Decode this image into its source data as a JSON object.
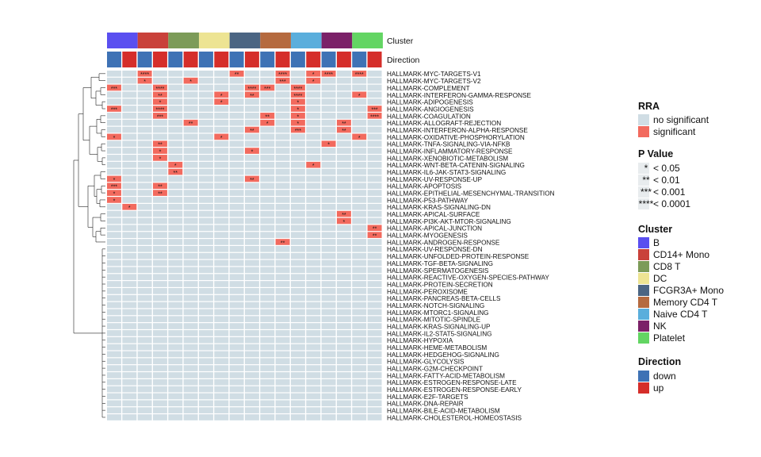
{
  "chart_data": {
    "type": "heatmap",
    "column_clusters": [
      "B",
      "B",
      "CD14+ Mono",
      "CD14+ Mono",
      "CD8 T",
      "CD8 T",
      "DC",
      "DC",
      "FCGR3A+ Mono",
      "FCGR3A+ Mono",
      "Memory CD4 T",
      "Memory CD4 T",
      "Naive CD4 T",
      "Naive CD4 T",
      "NK",
      "NK",
      "Platelet",
      "Platelet"
    ],
    "column_directions": [
      "down",
      "up",
      "down",
      "up",
      "down",
      "up",
      "down",
      "up",
      "down",
      "up",
      "down",
      "up",
      "down",
      "up",
      "down",
      "up",
      "down",
      "up"
    ],
    "column_annotation_labels": [
      "Cluster",
      "Direction"
    ],
    "rows": [
      {
        "label": "HALLMARK-MYC-TARGETS-V1",
        "cells": {
          "2": "****",
          "8": "**",
          "11": "****",
          "13": "*",
          "14": "****",
          "16": "****"
        }
      },
      {
        "label": "HALLMARK-MYC-TARGETS-V2",
        "cells": {
          "2": "*",
          "5": "*",
          "11": "***",
          "13": "*"
        }
      },
      {
        "label": "HALLMARK-COMPLEMENT",
        "cells": {
          "0": "***",
          "3": "****",
          "9": "****",
          "10": "***",
          "12": "****"
        }
      },
      {
        "label": "HALLMARK-INTERFERON-GAMMA-RESPONSE",
        "cells": {
          "3": "**",
          "7": "*",
          "9": "**",
          "12": "****",
          "16": "*"
        }
      },
      {
        "label": "HALLMARK-ADIPOGENESIS",
        "cells": {
          "3": "*",
          "7": "*",
          "12": "*"
        }
      },
      {
        "label": "HALLMARK-ANGIOGENESIS",
        "cells": {
          "0": "***",
          "3": "****",
          "12": "*",
          "17": "***"
        }
      },
      {
        "label": "HALLMARK-COAGULATION",
        "cells": {
          "3": "***",
          "10": "**",
          "12": "*",
          "17": "****"
        }
      },
      {
        "label": "HALLMARK-ALLOGRAFT-REJECTION",
        "cells": {
          "5": "**",
          "10": "*",
          "12": "*",
          "15": "**"
        }
      },
      {
        "label": "HALLMARK-INTERFERON-ALPHA-RESPONSE",
        "cells": {
          "9": "**",
          "12": "***",
          "15": "**"
        }
      },
      {
        "label": "HALLMARK-OXIDATIVE-PHOSPHORYLATION",
        "cells": {
          "0": "*",
          "7": "*",
          "16": "*"
        }
      },
      {
        "label": "HALLMARK-TNFA-SIGNALING-VIA-NFKB",
        "cells": {
          "3": "**",
          "14": "*"
        }
      },
      {
        "label": "HALLMARK-INFLAMMATORY-RESPONSE",
        "cells": {
          "3": "*",
          "9": "*"
        }
      },
      {
        "label": "HALLMARK-XENOBIOTIC-METABOLISM",
        "cells": {
          "3": "*"
        }
      },
      {
        "label": "HALLMARK-WNT-BETA-CATENIN-SIGNALING",
        "cells": {
          "4": "*",
          "13": "*"
        }
      },
      {
        "label": "HALLMARK-IL6-JAK-STAT3-SIGNALING",
        "cells": {
          "4": "**"
        }
      },
      {
        "label": "HALLMARK-UV-RESPONSE-UP",
        "cells": {
          "0": "*",
          "9": "**"
        }
      },
      {
        "label": "HALLMARK-APOPTOSIS",
        "cells": {
          "0": "***",
          "3": "**"
        }
      },
      {
        "label": "HALLMARK-EPITHELIAL-MESENCHYMAL-TRANSITION",
        "cells": {
          "0": "*",
          "3": "**"
        }
      },
      {
        "label": "HALLMARK-P53-PATHWAY",
        "cells": {
          "0": "*"
        }
      },
      {
        "label": "HALLMARK-KRAS-SIGNALING-DN",
        "cells": {
          "1": "*"
        }
      },
      {
        "label": "HALLMARK-APICAL-SURFACE",
        "cells": {
          "15": "**"
        }
      },
      {
        "label": "HALLMARK-PI3K-AKT-MTOR-SIGNALING",
        "cells": {
          "15": "*"
        }
      },
      {
        "label": "HALLMARK-APICAL-JUNCTION",
        "cells": {
          "17": "**"
        }
      },
      {
        "label": "HALLMARK-MYOGENESIS",
        "cells": {
          "17": "**"
        }
      },
      {
        "label": "HALLMARK-ANDROGEN-RESPONSE",
        "cells": {
          "11": "**"
        }
      },
      {
        "label": "HALLMARK-UV-RESPONSE-DN",
        "cells": {}
      },
      {
        "label": "HALLMARK-UNFOLDED-PROTEIN-RESPONSE",
        "cells": {}
      },
      {
        "label": "HALLMARK-TGF-BETA-SIGNALING",
        "cells": {}
      },
      {
        "label": "HALLMARK-SPERMATOGENESIS",
        "cells": {}
      },
      {
        "label": "HALLMARK-REACTIVE-OXYGEN-SPECIES-PATHWAY",
        "cells": {}
      },
      {
        "label": "HALLMARK-PROTEIN-SECRETION",
        "cells": {}
      },
      {
        "label": "HALLMARK-PEROXISOME",
        "cells": {}
      },
      {
        "label": "HALLMARK-PANCREAS-BETA-CELLS",
        "cells": {}
      },
      {
        "label": "HALLMARK-NOTCH-SIGNALING",
        "cells": {}
      },
      {
        "label": "HALLMARK-MTORC1-SIGNALING",
        "cells": {}
      },
      {
        "label": "HALLMARK-MITOTIC-SPINDLE",
        "cells": {}
      },
      {
        "label": "HALLMARK-KRAS-SIGNALING-UP",
        "cells": {}
      },
      {
        "label": "HALLMARK-IL2-STAT5-SIGNALING",
        "cells": {}
      },
      {
        "label": "HALLMARK-HYPOXIA",
        "cells": {}
      },
      {
        "label": "HALLMARK-HEME-METABOLISM",
        "cells": {}
      },
      {
        "label": "HALLMARK-HEDGEHOG-SIGNALING",
        "cells": {}
      },
      {
        "label": "HALLMARK-GLYCOLYSIS",
        "cells": {}
      },
      {
        "label": "HALLMARK-G2M-CHECKPOINT",
        "cells": {}
      },
      {
        "label": "HALLMARK-FATTY-ACID-METABOLISM",
        "cells": {}
      },
      {
        "label": "HALLMARK-ESTROGEN-RESPONSE-LATE",
        "cells": {}
      },
      {
        "label": "HALLMARK-ESTROGEN-RESPONSE-EARLY",
        "cells": {}
      },
      {
        "label": "HALLMARK-E2F-TARGETS",
        "cells": {}
      },
      {
        "label": "HALLMARK-DNA-REPAIR",
        "cells": {}
      },
      {
        "label": "HALLMARK-BILE-ACID-METABOLISM",
        "cells": {}
      },
      {
        "label": "HALLMARK-CHOLESTEROL-HOMEOSTASIS",
        "cells": {}
      }
    ],
    "colors": {
      "no_significant": "#d0dde4",
      "significant": "#f26a5e",
      "clusters": {
        "B": "#5a4ff0",
        "CD14+ Mono": "#c9413a",
        "CD8 T": "#7c9b58",
        "DC": "#ede493",
        "FCGR3A+ Mono": "#4b6583",
        "Memory CD4 T": "#b56a3f",
        "Naive CD4 T": "#5aaedc",
        "NK": "#7b2168",
        "Platelet": "#63d563"
      },
      "directions": {
        "down": "#3e72b5",
        "up": "#d52e2a"
      }
    },
    "legends": [
      {
        "title": "RRA",
        "items": [
          {
            "label": "no significant",
            "color": "#d0dde4"
          },
          {
            "label": "significant",
            "color": "#f26a5e"
          }
        ]
      },
      {
        "title": "P Value",
        "items": [
          {
            "symbol": "*",
            "label": "< 0.05"
          },
          {
            "symbol": "**",
            "label": "< 0.01"
          },
          {
            "symbol": "***",
            "label": "< 0.001"
          },
          {
            "symbol": "****",
            "label": "< 0.0001"
          }
        ]
      },
      {
        "title": "Cluster",
        "items": [
          {
            "label": "B"
          },
          {
            "label": "CD14+ Mono"
          },
          {
            "label": "CD8 T"
          },
          {
            "label": "DC"
          },
          {
            "label": "FCGR3A+ Mono"
          },
          {
            "label": "Memory CD4 T"
          },
          {
            "label": "Naive CD4 T"
          },
          {
            "label": "NK"
          },
          {
            "label": "Platelet"
          }
        ]
      },
      {
        "title": "Direction",
        "items": [
          {
            "label": "down"
          },
          {
            "label": "up"
          }
        ]
      }
    ],
    "legend_placement": "right",
    "row_dendrogram": true
  }
}
